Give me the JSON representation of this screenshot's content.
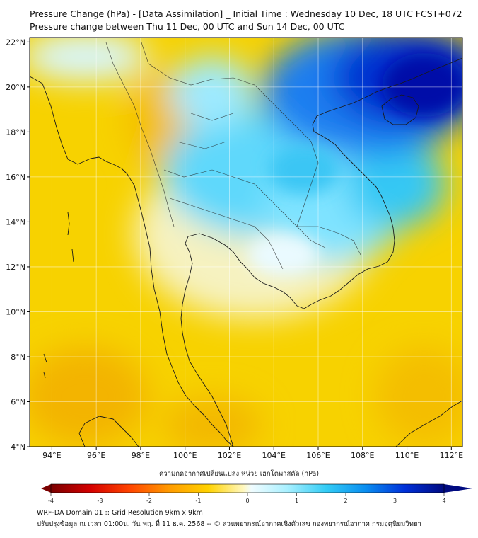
{
  "header": {
    "title_line1": "Pressure Change (hPa) - [Data Assimilation] _ Initial Time : Wednesday 10 Dec, 18 UTC FCST+072",
    "title_line2": "Pressure change between Thu 11 Dec, 00 UTC and Sun 14 Dec, 00 UTC"
  },
  "map": {
    "lat_labels": [
      "22°N",
      "20°N",
      "18°N",
      "16°N",
      "14°N",
      "12°N",
      "10°N",
      "8°N",
      "6°N",
      "4°N"
    ],
    "lon_labels": [
      "94°E",
      "96°E",
      "98°E",
      "100°E",
      "102°E",
      "104°E",
      "106°E",
      "108°E",
      "110°E",
      "112°E"
    ],
    "lat_range": [
      4,
      22.2
    ],
    "lon_range": [
      93,
      112.5
    ],
    "colors": {
      "yellow": "#f7d900",
      "orange": "#f2b000",
      "light_cyan": "#7fe6ff",
      "cyan": "#33ccf5",
      "blue": "#0050e0",
      "dark_blue": "#0010b0"
    }
  },
  "colorbar": {
    "label": "ความกดอากาศเปลี่ยนแปลง หน่วย เฮกโตพาสคัล (hPa)",
    "ticks": [
      "-4",
      "-3",
      "-2",
      "-1",
      "0",
      "1",
      "2",
      "3",
      "4"
    ],
    "range": [
      -4,
      4
    ]
  },
  "footer": {
    "line1": "WRF-DA Domain 01 :: Grid Resolution 9km x 9km",
    "line2": "ปรับปรุงข้อมูล ณ เวลา 01:00น. วัน พฤ. ที่ 11 ธ.ค. 2568 -- © ส่วนพยากรณ์อากาศเชิงตัวเลข กองพยากรณ์อากาศ กรมอุตุนิยมวิทยา"
  }
}
